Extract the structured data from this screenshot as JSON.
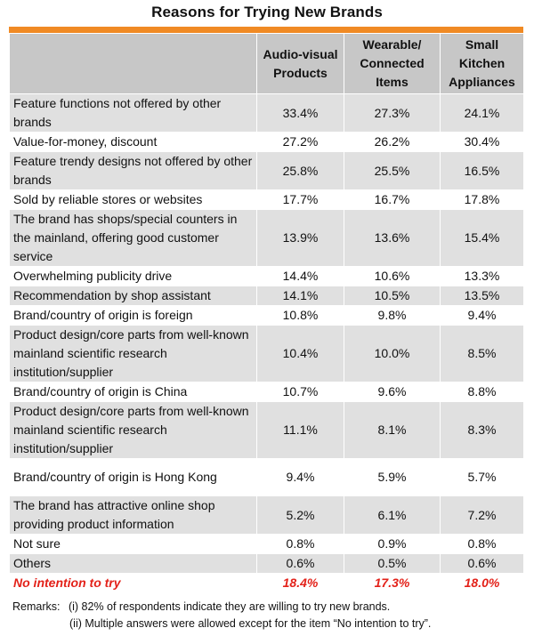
{
  "title": "Reasons for Trying New Brands",
  "colors": {
    "accent": "#f08a24",
    "header_bg": "#c7c7c7",
    "shaded_row": "#e0e0e0",
    "plain_row": "#ffffff",
    "highlight_text": "#e32119"
  },
  "table": {
    "columns": [
      "",
      "Audio-visual Products",
      "Wearable/ Connected Items",
      "Small Kitchen Appliances"
    ],
    "rows": [
      {
        "label": "Feature functions not offered by other brands",
        "values": [
          "33.4%",
          "27.3%",
          "24.1%"
        ],
        "shaded": true
      },
      {
        "label": "Value-for-money, discount",
        "values": [
          "27.2%",
          "26.2%",
          "30.4%"
        ],
        "shaded": false
      },
      {
        "label": "Feature trendy designs not offered by other brands",
        "values": [
          "25.8%",
          "25.5%",
          "16.5%"
        ],
        "shaded": true
      },
      {
        "label": "Sold by reliable stores or websites",
        "values": [
          "17.7%",
          "16.7%",
          "17.8%"
        ],
        "shaded": false
      },
      {
        "label": "The brand has shops/special counters in the mainland, offering good customer service",
        "values": [
          "13.9%",
          "13.6%",
          "15.4%"
        ],
        "shaded": true
      },
      {
        "label": "Overwhelming publicity drive",
        "values": [
          "14.4%",
          "10.6%",
          "13.3%"
        ],
        "shaded": false
      },
      {
        "label": "Recommendation by shop assistant",
        "values": [
          "14.1%",
          "10.5%",
          "13.5%"
        ],
        "shaded": true
      },
      {
        "label": "Brand/country of origin is foreign",
        "values": [
          "10.8%",
          "9.8%",
          "9.4%"
        ],
        "shaded": false
      },
      {
        "label": "Product design/core parts from well-known mainland scientific research institution/supplier",
        "values": [
          "10.4%",
          "10.0%",
          "8.5%"
        ],
        "shaded": true
      },
      {
        "label": "Brand/country of origin is China",
        "values": [
          "10.7%",
          "9.6%",
          "8.8%"
        ],
        "shaded": false
      },
      {
        "label": "Product design/core parts from well-known mainland scientific research institution/supplier",
        "values": [
          "11.1%",
          "8.1%",
          "8.3%"
        ],
        "shaded": true
      },
      {
        "label": "Brand/country of origin is Hong Kong",
        "values": [
          "9.4%",
          "5.9%",
          "5.7%"
        ],
        "shaded": false
      },
      {
        "label": "The brand has attractive online shop providing product information",
        "values": [
          "5.2%",
          "6.1%",
          "7.2%"
        ],
        "shaded": true
      },
      {
        "label": "Not sure",
        "values": [
          "0.8%",
          "0.9%",
          "0.8%"
        ],
        "shaded": false
      },
      {
        "label": "Others",
        "values": [
          "0.6%",
          "0.5%",
          "0.6%"
        ],
        "shaded": true
      },
      {
        "label": "No intention to try",
        "values": [
          "18.4%",
          "17.3%",
          "18.0%"
        ],
        "shaded": false,
        "highlight": true
      }
    ]
  },
  "remarks": {
    "heading": "Remarks:",
    "items": [
      "(i) 82% of respondents indicate they are willing to try new brands.",
      "(ii) Multiple answers were allowed except for the item “No intention to try”."
    ]
  }
}
